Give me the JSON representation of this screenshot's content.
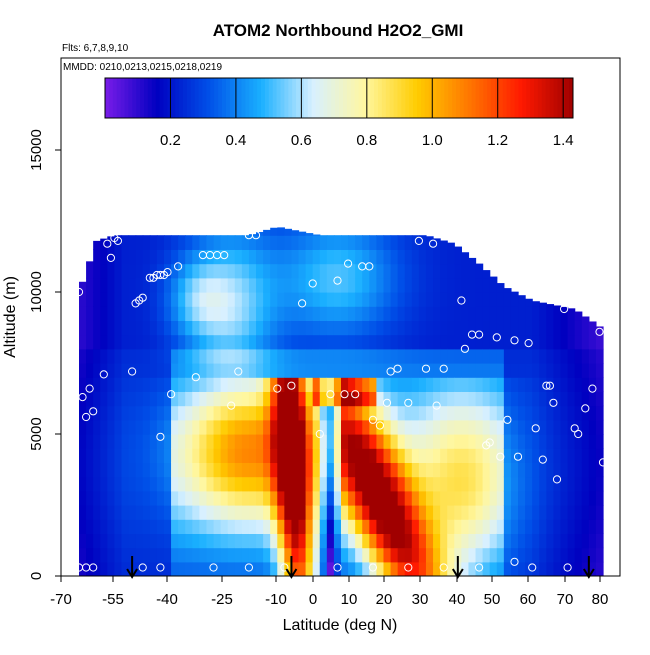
{
  "chart_data": {
    "type": "heatmap",
    "title": "ATOM2 Northbound H2O2_GMI",
    "annotation_flights": "Flts: 6,7,8,9,10",
    "annotation_dates": "MMDD: 0210,0213,0215,0218,0219",
    "xlabel": "Latitude (deg N)",
    "ylabel": "Altitude (m)",
    "xlim": [
      -70,
      85
    ],
    "ylim": [
      0,
      18000
    ],
    "x_ticks": [
      -70,
      -55,
      -40,
      -25,
      -10,
      0,
      10,
      20,
      30,
      40,
      50,
      60,
      70,
      80
    ],
    "x_tick_labels": [
      "-70",
      "-55",
      "-40",
      "-25",
      "-10",
      "0",
      "10",
      "20",
      "30",
      "40",
      "50",
      "60",
      "70",
      "80"
    ],
    "y_ticks": [
      0,
      5000,
      10000,
      15000
    ],
    "y_tick_labels": [
      "0",
      "5000",
      "10000",
      "15000"
    ],
    "colorbar": {
      "min": 0,
      "max": 1.43,
      "ticks": [
        0.2,
        0.4,
        0.6,
        0.8,
        1.0,
        1.2,
        1.4
      ],
      "tick_labels": [
        "0.2",
        "0.4",
        "0.6",
        "0.8",
        "1.0",
        "1.2",
        "1.4"
      ],
      "colors": [
        "#7a1ce8",
        "#0000c0",
        "#0050e8",
        "#1ab0ff",
        "#d8f0ff",
        "#fff7a0",
        "#ffcc00",
        "#ff7700",
        "#ff1a00",
        "#a00000"
      ]
    },
    "grid": false,
    "legend": "colorbar-top",
    "field": {
      "x_range": [
        -68,
        80
      ],
      "profile_top_altitude": [
        [
          -68,
          10000
        ],
        [
          -63,
          11800
        ],
        [
          -58,
          12000
        ],
        [
          -40,
          12000
        ],
        [
          -20,
          12000
        ],
        [
          -12,
          12300
        ],
        [
          0,
          12000
        ],
        [
          10,
          12000
        ],
        [
          20,
          12000
        ],
        [
          30,
          12000
        ],
        [
          38,
          11700
        ],
        [
          45,
          11000
        ],
        [
          52,
          10200
        ],
        [
          60,
          9700
        ],
        [
          72,
          9400
        ],
        [
          80,
          8700
        ]
      ],
      "h2o2_core_1": {
        "x_top": -9,
        "x_bottom": -5,
        "y_top": 7000,
        "value": 1.3
      },
      "h2o2_core_2": {
        "x_top": 7,
        "x_bottom": 27,
        "y_top": 6000,
        "value": 1.3
      },
      "dry_gap": {
        "x_top": 2,
        "x_bottom": 4,
        "value": 0.7
      }
    },
    "observations": [
      [
        -68,
        10000
      ],
      [
        -67,
        6300
      ],
      [
        -66,
        5600
      ],
      [
        -65,
        6600
      ],
      [
        -64,
        5800
      ],
      [
        -61,
        7100
      ],
      [
        -60,
        11700
      ],
      [
        -59,
        11200
      ],
      [
        -58,
        11900
      ],
      [
        -57,
        11800
      ],
      [
        -53,
        7200
      ],
      [
        -52,
        9600
      ],
      [
        -51,
        9700
      ],
      [
        -50,
        9800
      ],
      [
        -48,
        10500
      ],
      [
        -47,
        10500
      ],
      [
        -46,
        10600
      ],
      [
        -45,
        10600
      ],
      [
        -44,
        10600
      ],
      [
        -43,
        10700
      ],
      [
        -45,
        4900
      ],
      [
        -42,
        6400
      ],
      [
        -40,
        10900
      ],
      [
        -35,
        7000
      ],
      [
        -33,
        11300
      ],
      [
        -31,
        11300
      ],
      [
        -29,
        11300
      ],
      [
        -27,
        11300
      ],
      [
        -25,
        6000
      ],
      [
        -23,
        7200
      ],
      [
        -20,
        12000
      ],
      [
        -18,
        12000
      ],
      [
        -12,
        6600
      ],
      [
        -8,
        6700
      ],
      [
        -5,
        9600
      ],
      [
        -2,
        10300
      ],
      [
        0,
        5000
      ],
      [
        3,
        6400
      ],
      [
        5,
        10400
      ],
      [
        7,
        6400
      ],
      [
        8,
        11000
      ],
      [
        10,
        6400
      ],
      [
        12,
        10900
      ],
      [
        14,
        10900
      ],
      [
        15,
        5500
      ],
      [
        17,
        5300
      ],
      [
        19,
        6100
      ],
      [
        20,
        7200
      ],
      [
        22,
        7300
      ],
      [
        25,
        6100
      ],
      [
        28,
        11800
      ],
      [
        30,
        7300
      ],
      [
        32,
        11700
      ],
      [
        33,
        6000
      ],
      [
        35,
        7300
      ],
      [
        38,
        11900
      ],
      [
        40,
        9700
      ],
      [
        41,
        8000
      ],
      [
        43,
        8500
      ],
      [
        45,
        8500
      ],
      [
        47,
        4600
      ],
      [
        48,
        4700
      ],
      [
        50,
        8400
      ],
      [
        51,
        4200
      ],
      [
        53,
        5500
      ],
      [
        55,
        8300
      ],
      [
        56,
        4200
      ],
      [
        59,
        8200
      ],
      [
        61,
        5200
      ],
      [
        63,
        4100
      ],
      [
        64,
        6700
      ],
      [
        65,
        6700
      ],
      [
        66,
        6100
      ],
      [
        67,
        3400
      ],
      [
        69,
        9400
      ],
      [
        72,
        5200
      ],
      [
        73,
        5000
      ],
      [
        75,
        5900
      ],
      [
        77,
        6600
      ],
      [
        79,
        8600
      ],
      [
        80,
        4000
      ],
      [
        -68,
        300
      ],
      [
        -66,
        300
      ],
      [
        -64,
        300
      ],
      [
        -50,
        300
      ],
      [
        -45,
        300
      ],
      [
        -30,
        300
      ],
      [
        -20,
        300
      ],
      [
        -10,
        300
      ],
      [
        5,
        300
      ],
      [
        15,
        300
      ],
      [
        25,
        300
      ],
      [
        35,
        300
      ],
      [
        45,
        300
      ],
      [
        55,
        500
      ],
      [
        60,
        300
      ],
      [
        70,
        300
      ]
    ],
    "arrows_x": [
      -53,
      -8,
      39,
      76
    ]
  }
}
